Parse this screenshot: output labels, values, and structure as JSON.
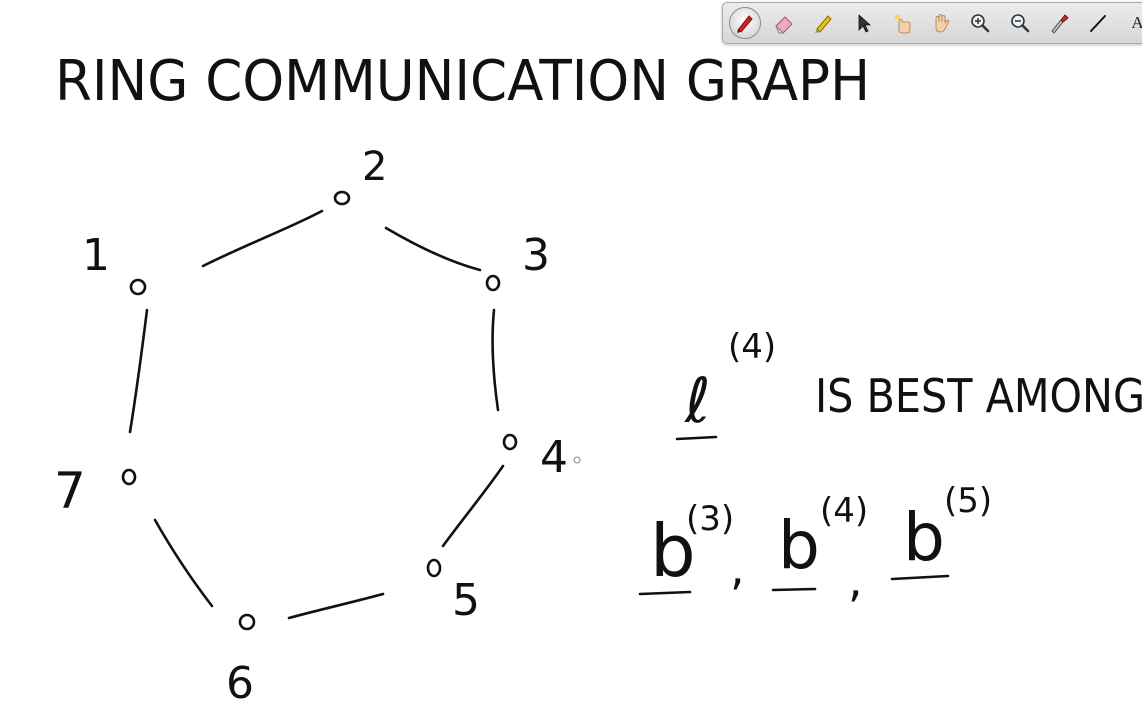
{
  "title": "RING COMMUNICATION GRAPH",
  "graph": {
    "nodes": [
      {
        "label": "1"
      },
      {
        "label": "2"
      },
      {
        "label": "3"
      },
      {
        "label": "4"
      },
      {
        "label": "5"
      },
      {
        "label": "6"
      },
      {
        "label": "7"
      }
    ]
  },
  "note": {
    "symbol": "ℓ",
    "superscript": "(4)",
    "text": "IS BEST AMONG",
    "terms": [
      {
        "symbol": "b",
        "superscript": "(3)"
      },
      {
        "symbol": "b",
        "superscript": "(4)"
      },
      {
        "symbol": "b",
        "superscript": "(5)"
      }
    ],
    "separator": ","
  },
  "toolbar": {
    "tools": [
      {
        "icon": "pen-icon",
        "active": true
      },
      {
        "icon": "eraser-icon",
        "active": false
      },
      {
        "icon": "highlighter-icon",
        "active": false
      },
      {
        "icon": "pointer-arrow-icon",
        "active": false
      },
      {
        "icon": "laser-pointer-hand-icon",
        "active": false
      },
      {
        "icon": "pan-hand-icon",
        "active": false
      },
      {
        "icon": "zoom-in-icon",
        "active": false
      },
      {
        "icon": "zoom-out-icon",
        "active": false
      },
      {
        "icon": "color-picker-icon",
        "active": false
      },
      {
        "icon": "line-icon",
        "active": false
      },
      {
        "icon": "text-tool-icon",
        "active": false,
        "label": "A"
      }
    ]
  },
  "colors": {
    "ink": "#111111",
    "background": "#ffffff",
    "toolbar": "#dcdcdc",
    "pen_accent": "#d62020",
    "highlighter_accent": "#e8c21a"
  }
}
